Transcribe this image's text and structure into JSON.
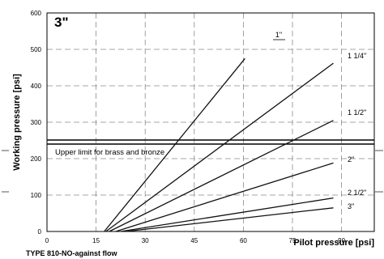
{
  "chart_data": {
    "type": "line",
    "title": "3\"",
    "xlabel": "Pilot pressure [psi]",
    "ylabel": "Working pressure [psi]",
    "xlim": [
      0,
      100
    ],
    "ylim": [
      0,
      600
    ],
    "x_ticks": [
      0,
      15,
      30,
      45,
      60,
      75,
      90
    ],
    "y_ticks": [
      0,
      100,
      200,
      300,
      400,
      500,
      600
    ],
    "grid": true,
    "series": [
      {
        "name": "1\"",
        "points": [
          [
            17.5,
            0
          ],
          [
            60.5,
            475
          ]
        ]
      },
      {
        "name": "1 1/4\"",
        "points": [
          [
            18,
            0
          ],
          [
            87.5,
            462
          ]
        ]
      },
      {
        "name": "1 1/2\"",
        "points": [
          [
            19,
            0
          ],
          [
            87.5,
            305
          ]
        ]
      },
      {
        "name": "2\"",
        "points": [
          [
            21,
            0
          ],
          [
            87.5,
            188
          ]
        ]
      },
      {
        "name": "2 1/2\"",
        "points": [
          [
            22.5,
            0
          ],
          [
            87.5,
            92
          ]
        ]
      },
      {
        "name": "3\"",
        "points": [
          [
            24,
            0
          ],
          [
            87.5,
            65
          ]
        ]
      }
    ],
    "annotations": [
      {
        "text": "Upper limit for brass and bronze",
        "y_line": 242
      }
    ],
    "footnote": "TYPE 810-NO-against flow"
  }
}
